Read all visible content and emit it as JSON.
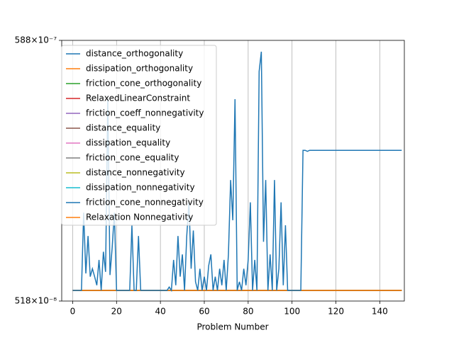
{
  "chart_data": {
    "type": "line",
    "xlabel": "Problem Number",
    "xlim": [
      -5,
      151.2
    ],
    "xticks": [
      0,
      20,
      40,
      60,
      80,
      100,
      120,
      140
    ],
    "ylim": [
      5.18e-06,
      5.88e-05
    ],
    "log_y": true,
    "yticks": [
      {
        "value": 5.18e-06,
        "label": "518×10⁻⁸"
      },
      {
        "value": 5.88e-05,
        "label": "588×10⁻⁷"
      }
    ],
    "grid": "x",
    "legend": "upper left",
    "series": [
      {
        "name": "distance_orthogonality",
        "color": "#1f77b4",
        "x": [
          0,
          1,
          2,
          3,
          4,
          5,
          6,
          7,
          8,
          9,
          10,
          11,
          12,
          13,
          14,
          15,
          16,
          17,
          18,
          19,
          20,
          21,
          22,
          23,
          24,
          25,
          26,
          27,
          28,
          29,
          30,
          31,
          32,
          33,
          34,
          35,
          36,
          37,
          38,
          39,
          40,
          41,
          42,
          43,
          44,
          45,
          46,
          47,
          48,
          49,
          50,
          51,
          52,
          53,
          54,
          55,
          56,
          57,
          58,
          59,
          60,
          61,
          62,
          63,
          64,
          65,
          66,
          67,
          68,
          69,
          70,
          71,
          72,
          73,
          74,
          75,
          76,
          77,
          78,
          79,
          80,
          81,
          82,
          83,
          84,
          85,
          86,
          87,
          88,
          89,
          90,
          91,
          92,
          93,
          94,
          95,
          96,
          97,
          98,
          99,
          100,
          101,
          102,
          103,
          104,
          105,
          106,
          107,
          108,
          109,
          110,
          111,
          112,
          113,
          114,
          115,
          116,
          117,
          118,
          119,
          120,
          121,
          122,
          123,
          124,
          125,
          126,
          127,
          128,
          129,
          130,
          131,
          132,
          133,
          134,
          135,
          136,
          137,
          138,
          139,
          140,
          141,
          142,
          143,
          144,
          145,
          146,
          147,
          148,
          149,
          150
        ],
        "values": [
          5.72e-06,
          5.72e-06,
          5.72e-06,
          5.72e-06,
          5.72e-06,
          1.18e-05,
          6.7e-06,
          9.5e-06,
          6.5e-06,
          7e-06,
          6.5e-06,
          6e-06,
          7.6e-06,
          5.72e-06,
          8.2e-06,
          6.8e-06,
          3.4e-05,
          6.6e-06,
          8.5e-06,
          1.18e-05,
          5.72e-06,
          5.72e-06,
          5.72e-06,
          5.72e-06,
          5.72e-06,
          5.72e-06,
          5.72e-06,
          1.05e-05,
          5.72e-06,
          5.72e-06,
          9.5e-06,
          5.72e-06,
          5.72e-06,
          5.72e-06,
          5.72e-06,
          5.72e-06,
          5.72e-06,
          5.72e-06,
          5.72e-06,
          5.72e-06,
          5.72e-06,
          5.72e-06,
          5.72e-06,
          5.72e-06,
          5.9e-06,
          5.72e-06,
          7.6e-06,
          6e-06,
          9.5e-06,
          6.5e-06,
          8e-06,
          5.72e-06,
          9.5e-06,
          1.3e-05,
          7e-06,
          1e-05,
          6.2e-06,
          5.72e-06,
          7e-06,
          5.72e-06,
          6.5e-06,
          5.72e-06,
          7.2e-06,
          8e-06,
          5.72e-06,
          6.5e-06,
          5.72e-06,
          7e-06,
          6e-06,
          7.6e-06,
          5.72e-06,
          8e-06,
          1.6e-05,
          1.1e-05,
          3.4e-05,
          5.72e-06,
          6.2e-06,
          5.72e-06,
          7e-06,
          6e-06,
          7.6e-06,
          1.3e-05,
          5.72e-06,
          7.6e-06,
          5.72e-06,
          4.4e-05,
          5.29e-05,
          9e-06,
          1.6e-05,
          5.72e-06,
          8e-06,
          5.72e-06,
          1.6e-05,
          5.72e-06,
          7e-06,
          1.3e-05,
          6e-06,
          1.05e-05,
          5.72e-06,
          5.72e-06,
          5.72e-06,
          5.72e-06,
          5.72e-06,
          5.72e-06,
          5.72e-06,
          2.11e-05,
          2.11e-05,
          2.09e-05,
          2.11e-05,
          2.11e-05,
          2.11e-05,
          2.11e-05,
          2.11e-05,
          2.11e-05,
          2.11e-05,
          2.11e-05,
          2.11e-05,
          2.11e-05,
          2.11e-05,
          2.11e-05,
          2.11e-05,
          2.11e-05,
          2.11e-05,
          2.11e-05,
          2.11e-05,
          2.11e-05,
          2.11e-05,
          2.11e-05,
          2.11e-05,
          2.11e-05,
          2.11e-05,
          2.11e-05,
          2.11e-05,
          2.11e-05,
          2.11e-05,
          2.11e-05,
          2.11e-05,
          2.11e-05,
          2.11e-05,
          2.11e-05,
          2.11e-05,
          2.11e-05,
          2.11e-05,
          2.11e-05,
          2.11e-05,
          2.11e-05,
          2.11e-05,
          2.11e-05,
          2.11e-05,
          2.11e-05,
          2.11e-05
        ]
      },
      {
        "name": "dissipation_orthogonality",
        "color": "#ff7f0e",
        "x": [
          0,
          150
        ],
        "values": [
          5.72e-06,
          5.72e-06
        ]
      },
      {
        "name": "friction_cone_orthogonality",
        "color": "#2ca02c",
        "x": [
          0,
          150
        ],
        "values": [
          5.72e-06,
          5.72e-06
        ]
      },
      {
        "name": "RelaxedLinearConstraint",
        "color": "#d62728",
        "x": [
          0,
          150
        ],
        "values": [
          5.72e-06,
          5.72e-06
        ]
      },
      {
        "name": "friction_coeff_nonnegativity",
        "color": "#9467bd",
        "x": [
          0,
          150
        ],
        "values": [
          5.72e-06,
          5.72e-06
        ]
      },
      {
        "name": "distance_equality",
        "color": "#8c564b",
        "x": [
          0,
          150
        ],
        "values": [
          5.72e-06,
          5.72e-06
        ]
      },
      {
        "name": "dissipation_equality",
        "color": "#e377c2",
        "x": [
          0,
          150
        ],
        "values": [
          5.72e-06,
          5.72e-06
        ]
      },
      {
        "name": "friction_cone_equality",
        "color": "#7f7f7f",
        "x": [
          0,
          150
        ],
        "values": [
          5.72e-06,
          5.72e-06
        ]
      },
      {
        "name": "distance_nonnegativity",
        "color": "#bcbd22",
        "x": [
          0,
          150
        ],
        "values": [
          5.72e-06,
          5.72e-06
        ]
      },
      {
        "name": "dissipation_nonnegativity",
        "color": "#17becf",
        "x": [
          0,
          150
        ],
        "values": [
          5.72e-06,
          5.72e-06
        ]
      },
      {
        "name": "friction_cone_nonnegativity",
        "color": "#1f77b4",
        "x": [
          0,
          150
        ],
        "values": [
          5.72e-06,
          5.72e-06
        ]
      },
      {
        "name": "Relaxation Nonnegativity",
        "color": "#ff7f0e",
        "x": [
          0,
          150
        ],
        "values": [
          5.72e-06,
          5.72e-06
        ]
      }
    ]
  }
}
